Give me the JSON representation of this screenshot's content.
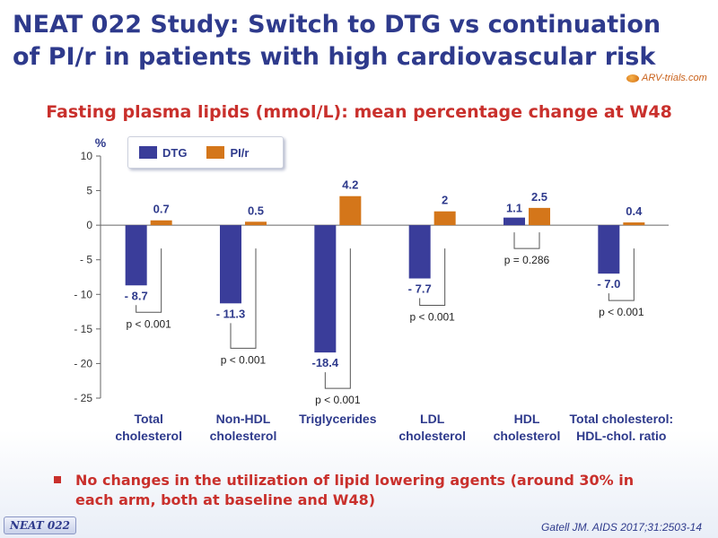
{
  "header": {
    "title_line1": "NEAT 022 Study: Switch to DTG vs continuation",
    "title_line2": "of PI/r in patients with high cardiovascular risk",
    "logo_text": "ARV-trials.com"
  },
  "subtitle": "Fasting plasma lipids (mmol/L): mean percentage change at W48",
  "colors": {
    "dtg": "#3a3d9a",
    "pir": "#d4761a",
    "title": "#2e3a8c",
    "accent": "#c9302c"
  },
  "chart_data": {
    "type": "bar",
    "ylabel": "%",
    "ylim": [
      -25,
      10
    ],
    "yticks": [
      10,
      5,
      0,
      -5,
      -10,
      -15,
      -20,
      -25
    ],
    "ytick_labels": [
      "10",
      "5",
      "0",
      "- 5",
      "- 10",
      "- 15",
      "- 20",
      "- 25"
    ],
    "categories": [
      [
        "Total",
        "cholesterol"
      ],
      [
        "Non-HDL",
        "cholesterol"
      ],
      [
        "Triglycerides"
      ],
      [
        "LDL",
        "cholesterol"
      ],
      [
        "HDL",
        "cholesterol"
      ],
      [
        "Total cholesterol:",
        "HDL-chol. ratio"
      ]
    ],
    "series": [
      {
        "name": "DTG",
        "values": [
          -8.7,
          -11.3,
          -18.4,
          -7.7,
          1.1,
          -7.0
        ],
        "labels": [
          "- 8.7",
          "- 11.3",
          "-18.4",
          "- 7.7",
          "1.1",
          "- 7.0"
        ]
      },
      {
        "name": "PI/r",
        "values": [
          0.7,
          0.5,
          4.2,
          2.0,
          2.5,
          0.4
        ],
        "labels": [
          "0.7",
          "0.5",
          "4.2",
          "2",
          "2.5",
          "0.4"
        ]
      }
    ],
    "p_values": [
      "p < 0.001",
      "p < 0.001",
      "p < 0.001",
      "p < 0.001",
      "p = 0.286",
      "p < 0.001"
    ],
    "legend_position": "top-left"
  },
  "bullet": "No changes in the utilization of lipid lowering agents (around 30% in each arm, both at baseline and W48)",
  "footer": {
    "badge": "NEAT 022",
    "citation": "Gatell JM. AIDS 2017;31:2503-14"
  }
}
